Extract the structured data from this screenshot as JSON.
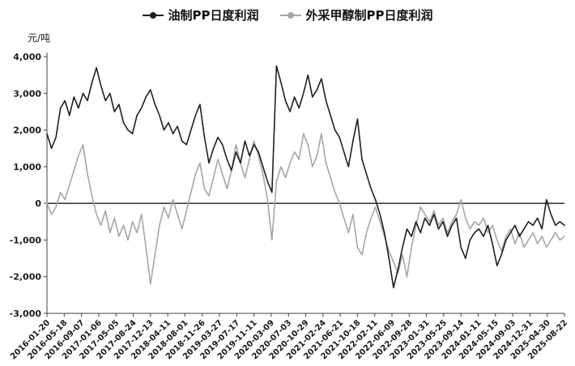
{
  "chart_data": {
    "type": "line",
    "unit": "元/吨",
    "ylim": [
      -3000,
      4000
    ],
    "grid": false,
    "legend_position": "top",
    "y_ticks": [
      {
        "value": 4000,
        "label": "4,000"
      },
      {
        "value": 3000,
        "label": "3,000"
      },
      {
        "value": 2000,
        "label": "2,000"
      },
      {
        "value": 1000,
        "label": "1,000"
      },
      {
        "value": 0,
        "label": "0"
      },
      {
        "value": -1000,
        "label": "-1,000"
      },
      {
        "value": -2000,
        "label": "-2,000"
      },
      {
        "value": -3000,
        "label": "-3,000"
      }
    ],
    "x_tick_labels": [
      "2016-01-20",
      "2016-05-18",
      "2016-09-07",
      "2017-01-06",
      "2017-05-05",
      "2017-08-24",
      "2017-12-13",
      "2018-04-11",
      "2018-08-01",
      "2018-11-26",
      "2019-03-27",
      "2019-07-17",
      "2019-11-11",
      "2020-03-09",
      "2020-07-03",
      "2020-10-29",
      "2021-02-24",
      "2021-06-21",
      "2021-10-18",
      "2022-02-11",
      "2022-06-09",
      "2022-09-28",
      "2023-01-31",
      "2023-05-25",
      "2023-09-14",
      "2024-01-11",
      "2024-05-15",
      "2024-09-03",
      "2024-12-31",
      "2025-04-30",
      "2025-08-22"
    ],
    "series": [
      {
        "name": "油制PP日度利润",
        "color": "#1f1f1f",
        "values": [
          1900,
          1500,
          1800,
          2600,
          2800,
          2400,
          2900,
          2600,
          3000,
          2800,
          3300,
          3700,
          3200,
          2800,
          3000,
          2500,
          2700,
          2200,
          2000,
          1900,
          2400,
          2600,
          2900,
          3100,
          2700,
          2400,
          2000,
          2200,
          1900,
          2100,
          1700,
          1600,
          2000,
          2400,
          2700,
          1800,
          1100,
          1500,
          1800,
          1600,
          1200,
          900,
          1400,
          1100,
          1700,
          1300,
          1600,
          1400,
          1000,
          600,
          300,
          3750,
          3300,
          2800,
          2500,
          2900,
          2600,
          3000,
          3500,
          2900,
          3100,
          3400,
          2800,
          2400,
          2000,
          1800,
          1400,
          1000,
          1700,
          2300,
          1200,
          800,
          400,
          100,
          -300,
          -800,
          -1500,
          -2300,
          -1800,
          -1200,
          -700,
          -900,
          -500,
          -800,
          -400,
          -600,
          -300,
          -700,
          -500,
          -900,
          -600,
          -400,
          -1200,
          -1500,
          -1000,
          -800,
          -700,
          -900,
          -600,
          -1100,
          -1700,
          -1400,
          -1000,
          -800,
          -600,
          -900,
          -700,
          -500,
          -600,
          -400,
          -700,
          100,
          -300,
          -600,
          -500,
          -600
        ]
      },
      {
        "name": "外采甲醇制PP日度利润",
        "color": "#a6a6a6",
        "values": [
          0,
          -300,
          -100,
          300,
          100,
          500,
          900,
          1300,
          1600,
          800,
          200,
          -300,
          -600,
          -200,
          -800,
          -400,
          -900,
          -600,
          -1000,
          -500,
          -800,
          -300,
          -1200,
          -2200,
          -1400,
          -600,
          -100,
          -400,
          100,
          -300,
          -700,
          -200,
          300,
          800,
          1100,
          400,
          200,
          700,
          1200,
          800,
          400,
          900,
          1600,
          1100,
          700,
          1200,
          1700,
          1300,
          800,
          100,
          -1000,
          600,
          1000,
          700,
          1100,
          1400,
          1200,
          1900,
          1600,
          1000,
          1300,
          1900,
          1100,
          700,
          300,
          0,
          -400,
          -800,
          -300,
          -1200,
          -1400,
          -800,
          -400,
          -100,
          -500,
          -900,
          -1300,
          -1600,
          -1900,
          -1400,
          -2000,
          -1200,
          -600,
          -100,
          -300,
          -500,
          -200,
          -600,
          -400,
          -800,
          -500,
          -300,
          100,
          -400,
          -700,
          -500,
          -600,
          -400,
          -800,
          -600,
          -1000,
          -1300,
          -900,
          -700,
          -1100,
          -800,
          -1200,
          -1000,
          -800,
          -1100,
          -900,
          -1200,
          -1000,
          -800,
          -1000,
          -900
        ]
      }
    ]
  }
}
